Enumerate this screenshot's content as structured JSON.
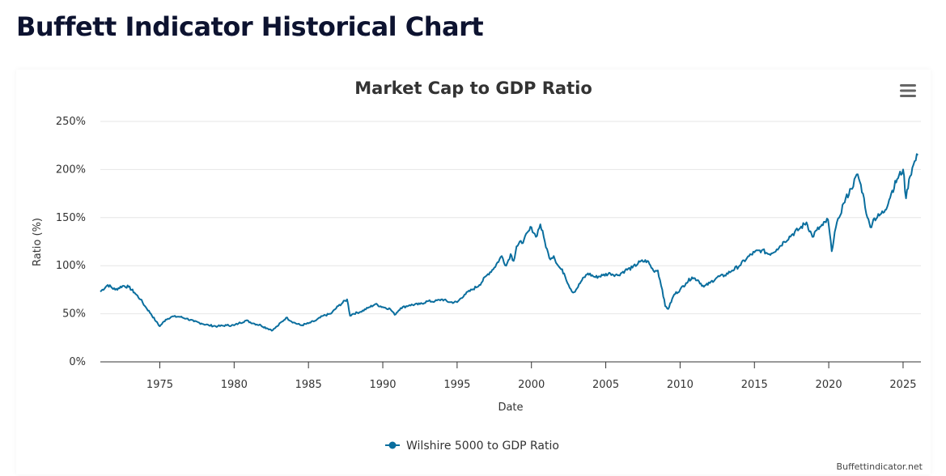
{
  "page": {
    "title": "Buffett Indicator Historical Chart"
  },
  "toolbar": {
    "menu_icon": "hamburger-menu-icon"
  },
  "credit": "Buffettindicator.net",
  "colors": {
    "series": "#0a6e9e",
    "grid": "#e6e6e6",
    "axis": "#333333"
  },
  "chart_data": {
    "type": "line",
    "title": "Market Cap to GDP Ratio",
    "xlabel": "Date",
    "ylabel": "Ratio (%)",
    "xlim": [
      1971,
      2026.2
    ],
    "ylim": [
      0,
      250
    ],
    "x_ticks": [
      "1975",
      "1980",
      "1985",
      "1990",
      "1995",
      "2000",
      "2005",
      "2010",
      "2015",
      "2020",
      "2025"
    ],
    "y_ticks": [
      "0%",
      "50%",
      "100%",
      "150%",
      "200%",
      "250%"
    ],
    "grid": true,
    "legend_position": "bottom-center",
    "series": [
      {
        "name": "Wilshire 5000 to GDP Ratio",
        "color": "#0a6e9e",
        "x": [
          1971.0,
          1971.5,
          1972.0,
          1972.5,
          1972.9,
          1973.3,
          1973.7,
          1974.0,
          1974.4,
          1974.75,
          1975.0,
          1975.4,
          1975.8,
          1976.3,
          1976.8,
          1977.3,
          1977.8,
          1978.3,
          1978.9,
          1979.5,
          1980.0,
          1980.3,
          1980.8,
          1981.3,
          1981.8,
          1982.2,
          1982.6,
          1982.9,
          1983.5,
          1984.0,
          1984.5,
          1985.0,
          1985.5,
          1986.0,
          1986.5,
          1987.0,
          1987.6,
          1987.8,
          1988.0,
          1988.5,
          1989.0,
          1989.5,
          1990.0,
          1990.5,
          1990.8,
          1991.2,
          1991.8,
          1992.5,
          1993.0,
          1993.5,
          1994.0,
          1994.5,
          1995.0,
          1995.5,
          1996.0,
          1996.5,
          1997.0,
          1997.5,
          1998.0,
          1998.3,
          1998.6,
          1998.8,
          1999.0,
          1999.5,
          2000.0,
          2000.3,
          2000.6,
          2000.9,
          2001.2,
          2001.5,
          2001.8,
          2002.2,
          2002.5,
          2002.8,
          2003.0,
          2003.4,
          2003.8,
          2004.3,
          2004.8,
          2005.3,
          2005.8,
          2006.3,
          2006.8,
          2007.3,
          2007.8,
          2008.2,
          2008.5,
          2008.8,
          2009.0,
          2009.2,
          2009.6,
          2010.0,
          2010.4,
          2010.8,
          2011.2,
          2011.6,
          2012.0,
          2012.5,
          2013.0,
          2013.5,
          2014.0,
          2014.5,
          2015.0,
          2015.5,
          2016.0,
          2016.5,
          2017.0,
          2017.5,
          2018.0,
          2018.5,
          2018.9,
          2019.2,
          2019.6,
          2019.95,
          2020.2,
          2020.4,
          2020.7,
          2021.0,
          2021.5,
          2021.95,
          2022.3,
          2022.6,
          2022.8,
          2023.0,
          2023.4,
          2023.8,
          2024.2,
          2024.6,
          2025.0,
          2025.2,
          2025.4,
          2025.7,
          2026.0
        ],
        "y": [
          73,
          80,
          75,
          79,
          78,
          72,
          65,
          58,
          50,
          42,
          37,
          44,
          47,
          47,
          45,
          42,
          40,
          38,
          37,
          38,
          38,
          40,
          43,
          40,
          38,
          35,
          33,
          37,
          46,
          41,
          38,
          40,
          43,
          48,
          50,
          58,
          65,
          48,
          50,
          52,
          56,
          60,
          57,
          55,
          49,
          56,
          59,
          60,
          63,
          63,
          65,
          62,
          62,
          70,
          75,
          80,
          90,
          98,
          110,
          100,
          112,
          105,
          120,
          127,
          140,
          130,
          143,
          125,
          108,
          110,
          100,
          92,
          80,
          72,
          75,
          85,
          92,
          88,
          90,
          92,
          90,
          95,
          98,
          104,
          105,
          95,
          95,
          75,
          58,
          55,
          70,
          75,
          82,
          88,
          85,
          78,
          82,
          88,
          90,
          95,
          100,
          108,
          114,
          116,
          112,
          117,
          125,
          132,
          138,
          145,
          130,
          137,
          142,
          148,
          115,
          135,
          150,
          165,
          180,
          195,
          175,
          150,
          140,
          148,
          152,
          158,
          175,
          190,
          200,
          170,
          190,
          205,
          215
        ]
      }
    ]
  }
}
